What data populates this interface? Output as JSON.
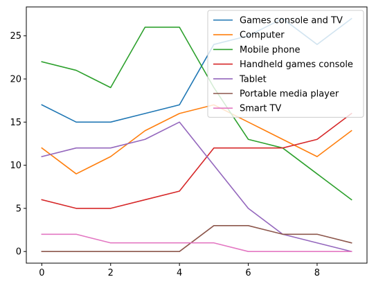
{
  "chart_data": {
    "type": "line",
    "title": "",
    "xlabel": "",
    "ylabel": "",
    "x": [
      0,
      1,
      2,
      3,
      4,
      5,
      6,
      7,
      8,
      9
    ],
    "xlim": [
      -0.45,
      9.45
    ],
    "ylim": [
      -1.35,
      28.35
    ],
    "xticks": [
      0,
      2,
      4,
      6,
      8
    ],
    "yticks": [
      0,
      5,
      10,
      15,
      20,
      25
    ],
    "grid": false,
    "legend": "upper right",
    "series": [
      {
        "name": "Games console and TV",
        "color": "#1f77b4",
        "values": [
          17,
          15,
          15,
          16,
          17,
          24,
          25,
          27,
          24,
          27
        ]
      },
      {
        "name": "Computer",
        "color": "#ff7f0e",
        "values": [
          12,
          9,
          11,
          14,
          16,
          17,
          15,
          13,
          11,
          14
        ]
      },
      {
        "name": "Mobile phone",
        "color": "#2ca02c",
        "values": [
          22,
          21,
          19,
          26,
          26,
          19,
          13,
          12,
          9,
          6
        ]
      },
      {
        "name": "Handheld games console",
        "color": "#d62728",
        "values": [
          6,
          5,
          5,
          6,
          7,
          12,
          12,
          12,
          13,
          16
        ]
      },
      {
        "name": "Tablet",
        "color": "#9467bd",
        "values": [
          11,
          12,
          12,
          13,
          15,
          10,
          5,
          2,
          1,
          0
        ]
      },
      {
        "name": "Portable media player",
        "color": "#8c564b",
        "values": [
          0,
          0,
          0,
          0,
          0,
          3,
          3,
          2,
          2,
          1
        ]
      },
      {
        "name": "Smart TV",
        "color": "#e377c2",
        "values": [
          2,
          2,
          1,
          1,
          1,
          1,
          0,
          0,
          0,
          0
        ]
      }
    ]
  }
}
